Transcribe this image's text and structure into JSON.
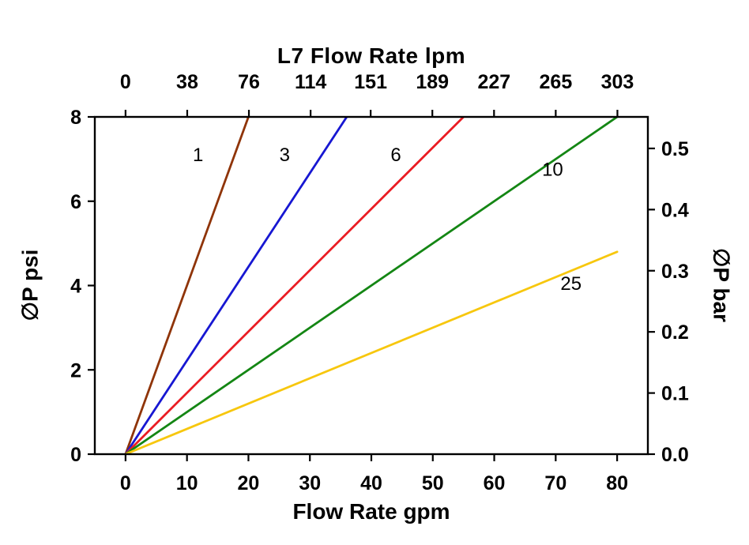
{
  "chart_data": {
    "type": "line",
    "title": "L7 Flow Rate lpm",
    "xlabel": "Flow Rate gpm",
    "ylabel_left": "∅P psi",
    "ylabel_right": "∅P bar",
    "background": "#ffffff",
    "axis_color": "#000000",
    "grid": false,
    "legend": "inline-labels",
    "axes": {
      "x_bottom": {
        "unit": "gpm",
        "range": [
          -5,
          85
        ],
        "tick_values": [
          0,
          10,
          20,
          30,
          40,
          50,
          60,
          70,
          80
        ],
        "tick_labels": [
          "0",
          "10",
          "20",
          "30",
          "40",
          "50",
          "60",
          "70",
          "80"
        ]
      },
      "x_top": {
        "unit": "lpm",
        "tick_values_lpm": [
          0,
          38,
          76,
          114,
          151,
          189,
          227,
          265,
          303
        ],
        "tick_labels": [
          "0",
          "38",
          "76",
          "114",
          "151",
          "189",
          "227",
          "265",
          "303"
        ],
        "lpm_per_gpm": 3.78541
      },
      "y_left": {
        "unit": "psi",
        "range": [
          0,
          8
        ],
        "tick_values": [
          0,
          2,
          4,
          6,
          8
        ],
        "tick_labels": [
          "0",
          "2",
          "4",
          "6",
          "8"
        ]
      },
      "y_right": {
        "unit": "bar",
        "tick_values_bar": [
          0,
          0.1,
          0.2,
          0.3,
          0.4,
          0.5
        ],
        "tick_labels": [
          "0.0",
          "0.1",
          "0.2",
          "0.3",
          "0.4",
          "0.5"
        ],
        "psi_per_bar": 14.5038
      }
    },
    "series": [
      {
        "name": "1",
        "color": "#8f3408",
        "points": [
          [
            0,
            0
          ],
          [
            20,
            8
          ]
        ],
        "label_pos": [
          11.8,
          6.95
        ]
      },
      {
        "name": "3",
        "color": "#1717d2",
        "points": [
          [
            0,
            0
          ],
          [
            36,
            8
          ]
        ],
        "label_pos": [
          25.9,
          6.95
        ]
      },
      {
        "name": "6",
        "color": "#ea1c23",
        "points": [
          [
            0,
            0
          ],
          [
            55,
            8
          ]
        ],
        "label_pos": [
          44.0,
          6.95
        ]
      },
      {
        "name": "10",
        "color": "#148614",
        "points": [
          [
            0,
            0
          ],
          [
            80,
            8
          ]
        ],
        "label_pos": [
          69.5,
          6.6
        ]
      },
      {
        "name": "25",
        "color": "#f7c70e",
        "points": [
          [
            0,
            0
          ],
          [
            80,
            4.8
          ]
        ],
        "label_pos": [
          72.5,
          3.9
        ]
      }
    ]
  }
}
